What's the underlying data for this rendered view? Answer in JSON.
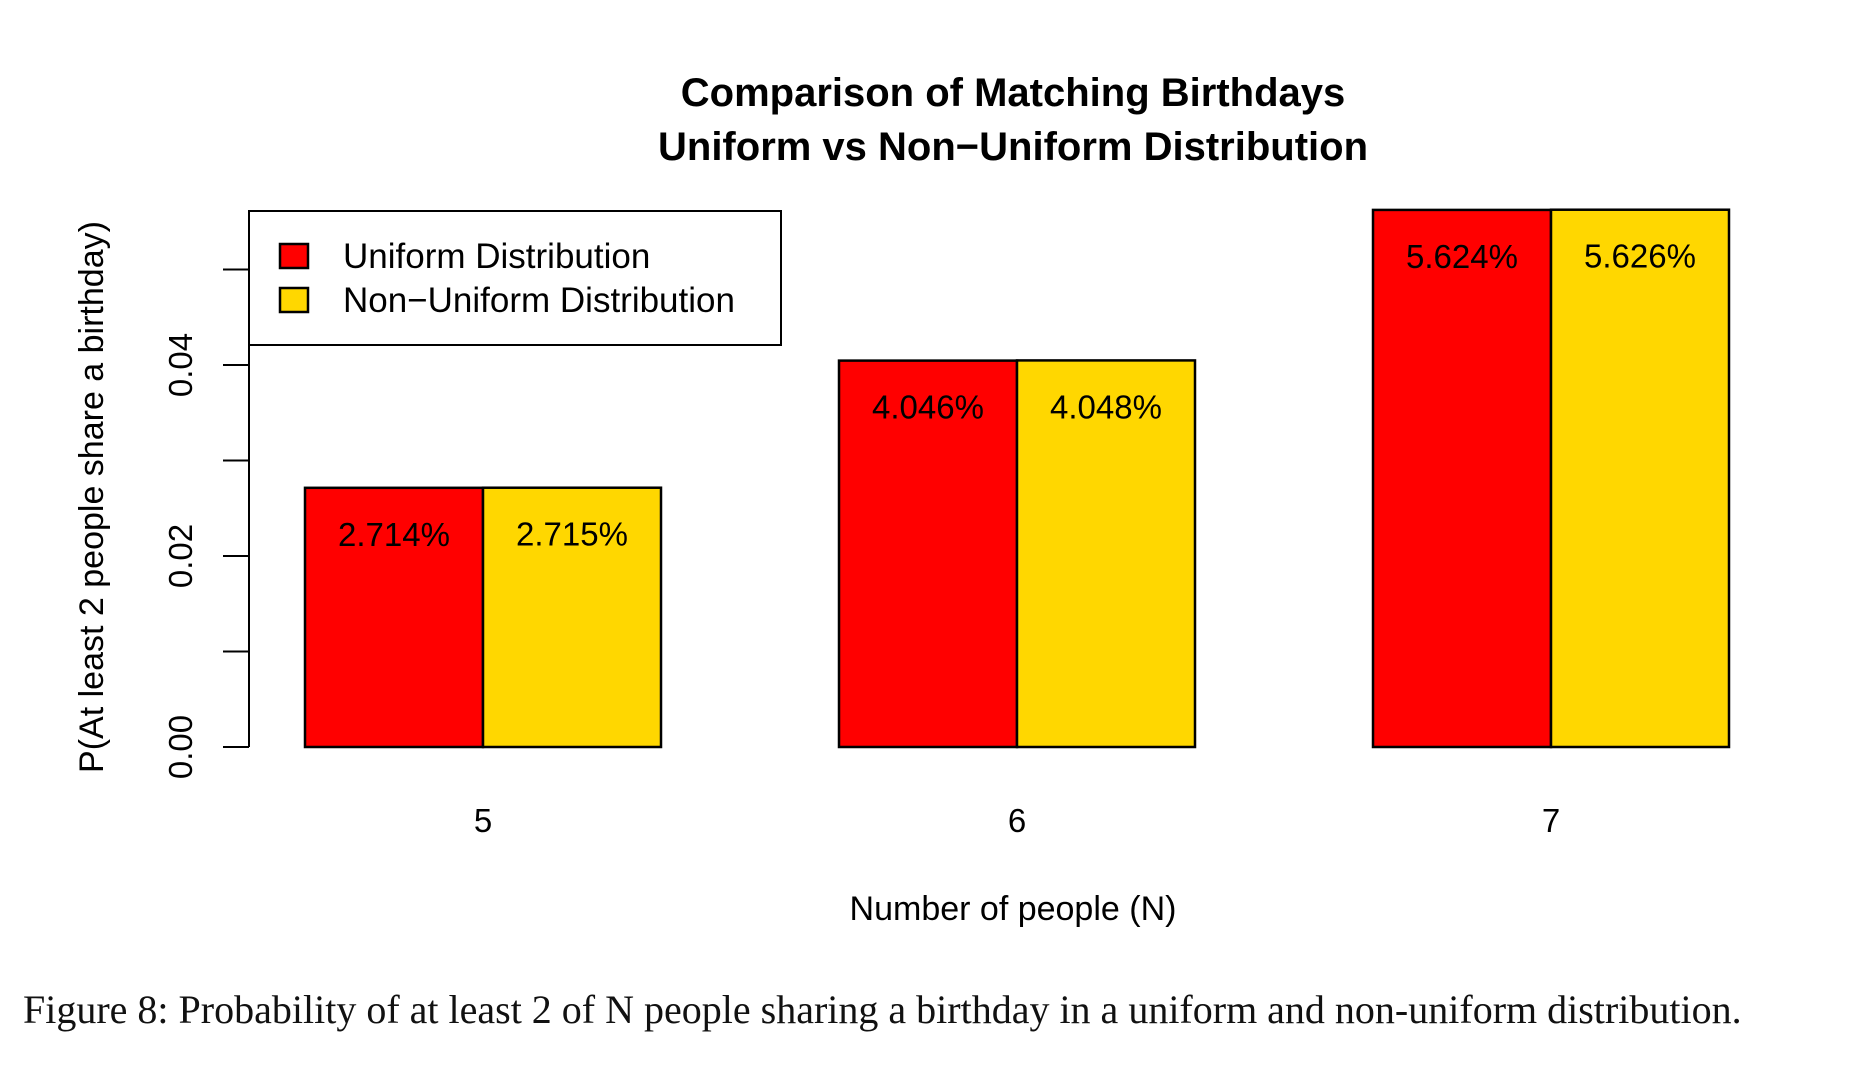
{
  "chart_data": {
    "type": "bar",
    "title": "Comparison of Matching Birthdays",
    "subtitle": "Uniform vs Non−Uniform Distribution",
    "xlabel": "Number of people (N)",
    "ylabel": "P(At least 2 people share a birthday)",
    "categories": [
      "5",
      "6",
      "7"
    ],
    "series": [
      {
        "name": "Uniform Distribution",
        "color": "#ff0000",
        "values": [
          0.02714,
          0.04046,
          0.05624
        ],
        "labels": [
          "2.714%",
          "4.046%",
          "5.624%"
        ]
      },
      {
        "name": "Non−Uniform Distribution",
        "color": "#ffd700",
        "values": [
          0.02715,
          0.04048,
          0.05626
        ],
        "labels": [
          "2.715%",
          "4.048%",
          "5.626%"
        ]
      }
    ],
    "yticks": [
      0,
      0.02,
      0.04
    ],
    "ytick_labels": [
      "0.00",
      "0.02",
      "0.04"
    ],
    "ylim": [
      0,
      0.06
    ],
    "legend_position": "top-left",
    "grid": false
  },
  "caption": "Figure 8: Probability of at least 2 of N people sharing a birthday in a uniform and non-uniform distribution."
}
